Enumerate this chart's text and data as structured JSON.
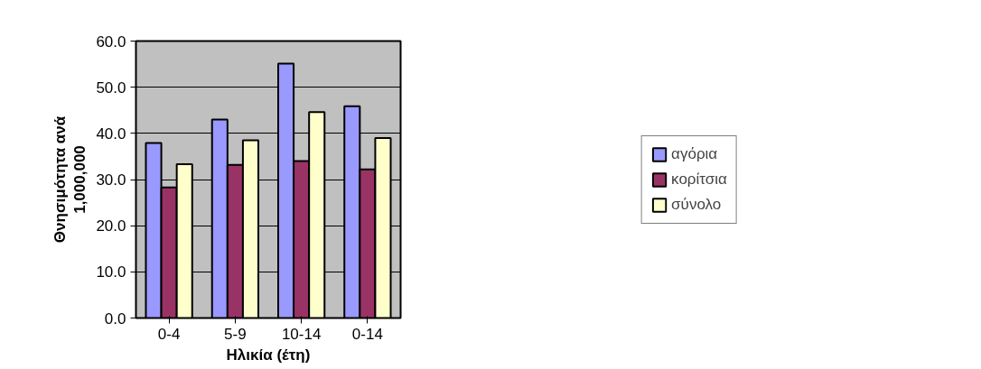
{
  "chart_data": {
    "type": "bar",
    "xlabel": "Ηλικία (έτη)",
    "ylabel": "Θνησιμότητα ανά\n1,000,000",
    "categories": [
      "0-4",
      "5-9",
      "10-14",
      "0-14"
    ],
    "series": [
      {
        "name": "αγόρια",
        "color": "#9999ff",
        "values": [
          37.9,
          43.0,
          55.1,
          45.9
        ]
      },
      {
        "name": "κορίτσια",
        "color": "#993366",
        "values": [
          28.3,
          33.2,
          34.0,
          32.2
        ]
      },
      {
        "name": "σύνολο",
        "color": "#ffffcc",
        "values": [
          33.3,
          38.5,
          44.6,
          39.0
        ]
      }
    ],
    "ylim": [
      0,
      60
    ],
    "yticks": [
      {
        "value": 0,
        "label": "0.0"
      },
      {
        "value": 10,
        "label": "10.0"
      },
      {
        "value": 20,
        "label": "20.0"
      },
      {
        "value": 30,
        "label": "30.0"
      },
      {
        "value": 40,
        "label": "40.0"
      },
      {
        "value": 50,
        "label": "50.0"
      },
      {
        "value": 60,
        "label": "60.0"
      }
    ],
    "grid": "y",
    "legend": "right"
  }
}
